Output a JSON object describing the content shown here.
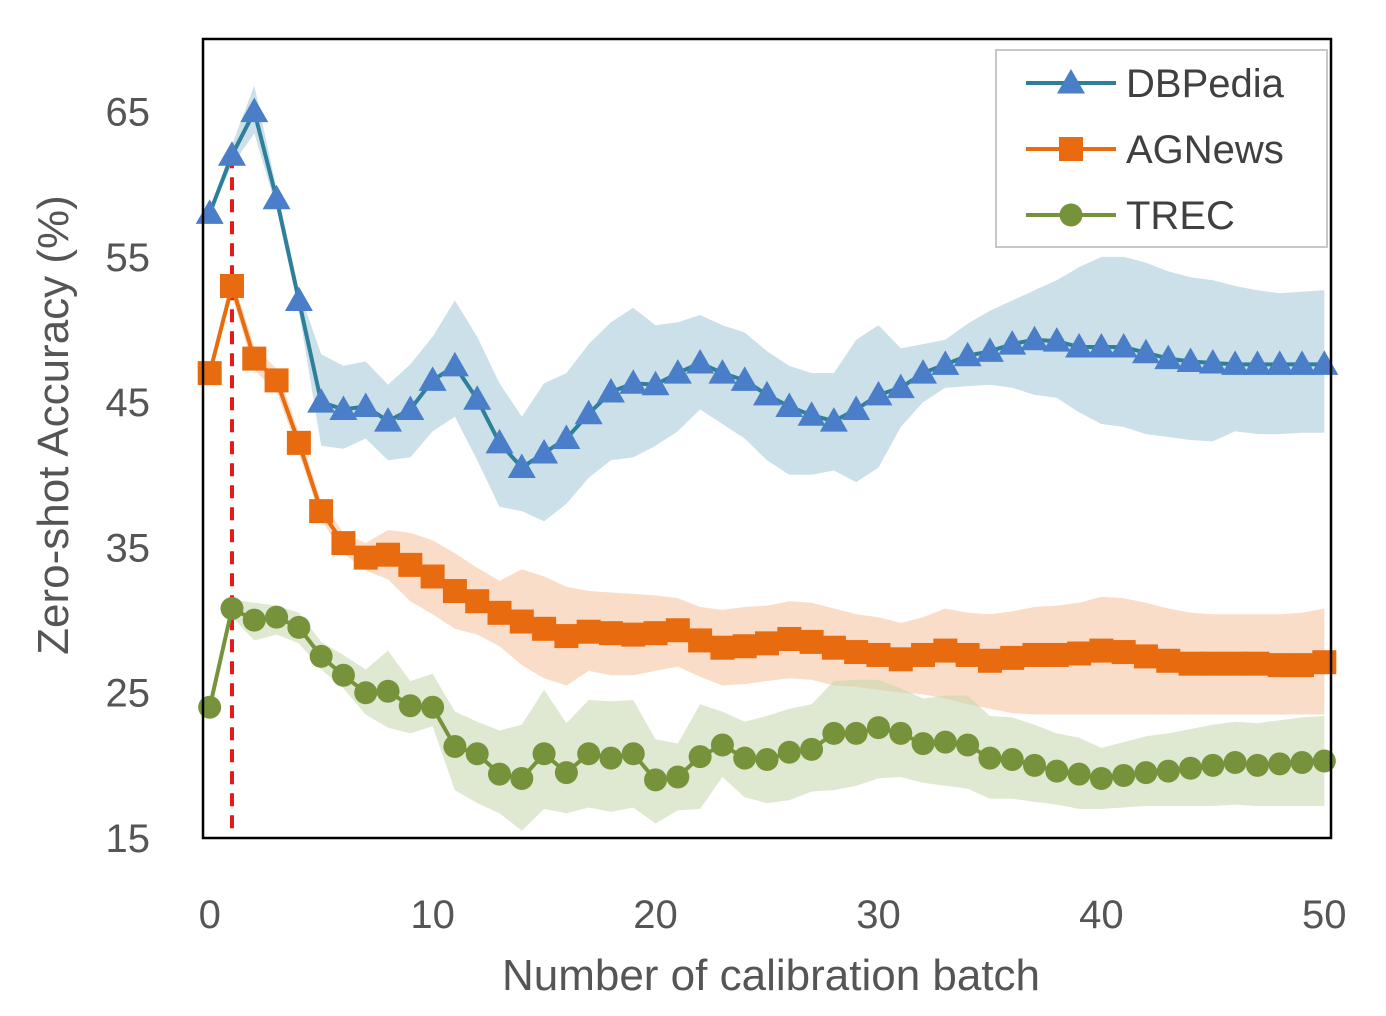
{
  "chart_data": {
    "type": "line",
    "xlabel": "Number of calibration batch",
    "ylabel": "Zero-shot Accuracy (%)",
    "xlim": [
      -0.3,
      50.3
    ],
    "ylim": [
      15,
      70
    ],
    "xticks": [
      0,
      10,
      20,
      30,
      40,
      50
    ],
    "yticks": [
      15,
      25,
      35,
      45,
      55,
      65
    ],
    "grid": false,
    "legend_position": "top-right",
    "reference_line": {
      "x": 1,
      "color": "#e31a1c",
      "style": "dashed"
    },
    "series": [
      {
        "name": "DBPedia",
        "color": "#2e7f9a",
        "marker_color": "#4a7ec8",
        "band_color": "#a9cbd8",
        "marker": "triangle",
        "x": [
          0,
          1,
          2,
          3,
          4,
          5,
          6,
          7,
          8,
          9,
          10,
          11,
          12,
          13,
          14,
          15,
          16,
          17,
          18,
          19,
          20,
          21,
          22,
          23,
          24,
          25,
          26,
          27,
          28,
          29,
          30,
          31,
          32,
          33,
          34,
          35,
          36,
          37,
          38,
          39,
          40,
          41,
          42,
          43,
          44,
          45,
          46,
          47,
          48,
          49,
          50
        ],
        "values": [
          58.0,
          62.0,
          65.0,
          59.0,
          52.0,
          45.0,
          44.5,
          44.7,
          43.7,
          44.5,
          46.5,
          47.5,
          45.2,
          42.2,
          40.5,
          41.5,
          42.5,
          44.2,
          45.7,
          46.3,
          46.2,
          47.0,
          47.7,
          47.0,
          46.5,
          45.5,
          44.7,
          44.1,
          43.7,
          44.5,
          45.5,
          46.0,
          47.0,
          47.6,
          48.2,
          48.5,
          49.0,
          49.3,
          49.2,
          48.8,
          48.8,
          48.8,
          48.4,
          48.0,
          47.8,
          47.7,
          47.6,
          47.6,
          47.6,
          47.6,
          47.6
        ],
        "lower": [
          58.0,
          61.3,
          63.5,
          58.3,
          51.3,
          42.0,
          41.8,
          42.5,
          41.0,
          41.2,
          43.0,
          44.0,
          41.0,
          37.8,
          37.5,
          36.8,
          38.0,
          39.8,
          41.0,
          41.2,
          42.0,
          43.0,
          44.5,
          43.5,
          42.5,
          41.0,
          40.0,
          40.0,
          40.3,
          39.5,
          40.5,
          43.3,
          45.0,
          46.0,
          46.1,
          46.2,
          46.0,
          45.5,
          45.3,
          44.3,
          43.5,
          43.3,
          42.8,
          42.6,
          42.4,
          42.3,
          43.0,
          42.8,
          42.8,
          42.9,
          42.9
        ],
        "upper": [
          58.0,
          62.7,
          66.8,
          59.7,
          52.7,
          48.3,
          47.5,
          47.8,
          46.2,
          47.6,
          49.5,
          52.0,
          49.5,
          46.3,
          44.0,
          46.3,
          47.0,
          49.0,
          50.5,
          51.5,
          50.3,
          50.5,
          51.0,
          50.3,
          49.8,
          48.5,
          47.5,
          47.0,
          47.0,
          49.3,
          50.3,
          48.7,
          49.0,
          49.3,
          50.4,
          51.3,
          52.0,
          52.7,
          53.4,
          54.3,
          55.0,
          55.0,
          54.6,
          54.0,
          53.6,
          53.4,
          53.0,
          52.7,
          52.5,
          52.6,
          52.7
        ]
      },
      {
        "name": "AGNews",
        "color": "#e86c0f",
        "marker_color": "#e86c0f",
        "band_color": "#f5c6a3",
        "marker": "square",
        "x": [
          0,
          1,
          2,
          3,
          4,
          5,
          6,
          7,
          8,
          9,
          10,
          11,
          12,
          13,
          14,
          15,
          16,
          17,
          18,
          19,
          20,
          21,
          22,
          23,
          24,
          25,
          26,
          27,
          28,
          29,
          30,
          31,
          32,
          33,
          34,
          35,
          36,
          37,
          38,
          39,
          40,
          41,
          42,
          43,
          44,
          45,
          46,
          47,
          48,
          49,
          50
        ],
        "values": [
          47.0,
          53.0,
          48.0,
          46.5,
          42.2,
          37.5,
          35.3,
          34.3,
          34.5,
          33.8,
          33.0,
          32.0,
          31.3,
          30.5,
          29.9,
          29.4,
          28.9,
          29.2,
          29.1,
          29.0,
          29.1,
          29.3,
          28.6,
          28.1,
          28.2,
          28.4,
          28.7,
          28.5,
          28.1,
          27.8,
          27.6,
          27.3,
          27.6,
          27.9,
          27.6,
          27.2,
          27.4,
          27.6,
          27.6,
          27.7,
          27.9,
          27.8,
          27.5,
          27.2,
          27.0,
          27.0,
          27.0,
          27.0,
          26.9,
          26.9,
          27.1
        ],
        "lower": [
          47.0,
          52.3,
          47.2,
          45.7,
          41.5,
          36.9,
          34.6,
          33.4,
          32.8,
          31.3,
          30.4,
          29.4,
          29.0,
          28.2,
          26.9,
          26.0,
          25.5,
          26.5,
          26.2,
          26.2,
          26.5,
          26.8,
          26.1,
          25.5,
          25.6,
          25.8,
          26.0,
          25.9,
          25.5,
          25.4,
          25.2,
          25.0,
          24.9,
          24.6,
          24.2,
          23.9,
          23.6,
          23.5,
          23.5,
          23.5,
          23.5,
          23.5,
          23.5,
          23.5,
          23.5,
          23.5,
          23.5,
          23.5,
          23.5,
          23.5,
          23.5
        ],
        "upper": [
          47.0,
          53.7,
          48.8,
          47.3,
          42.9,
          38.2,
          36.0,
          35.3,
          36.2,
          36.0,
          35.5,
          34.6,
          33.6,
          32.7,
          33.5,
          33.0,
          32.3,
          32.0,
          31.9,
          31.8,
          31.7,
          31.5,
          30.9,
          30.7,
          30.9,
          31.0,
          31.3,
          31.2,
          30.8,
          30.4,
          30.2,
          29.8,
          30.2,
          30.8,
          30.5,
          30.4,
          30.6,
          30.9,
          31.0,
          31.2,
          31.6,
          31.5,
          31.2,
          30.8,
          30.5,
          30.4,
          30.4,
          30.4,
          30.4,
          30.5,
          30.8
        ]
      },
      {
        "name": "TREC",
        "color": "#76933c",
        "marker_color": "#76933c",
        "band_color": "#c9d8b0",
        "marker": "circle",
        "x": [
          0,
          1,
          2,
          3,
          4,
          5,
          6,
          7,
          8,
          9,
          10,
          11,
          12,
          13,
          14,
          15,
          16,
          17,
          18,
          19,
          20,
          21,
          22,
          23,
          24,
          25,
          26,
          27,
          28,
          29,
          30,
          31,
          32,
          33,
          34,
          35,
          36,
          37,
          38,
          39,
          40,
          41,
          42,
          43,
          44,
          45,
          46,
          47,
          48,
          49,
          50
        ],
        "values": [
          24.0,
          30.8,
          30.0,
          30.2,
          29.5,
          27.5,
          26.2,
          25.0,
          25.1,
          24.1,
          24.0,
          21.3,
          20.8,
          19.4,
          19.1,
          20.8,
          19.5,
          20.8,
          20.5,
          20.8,
          19.0,
          19.2,
          20.6,
          21.4,
          20.5,
          20.4,
          20.9,
          21.1,
          22.2,
          22.2,
          22.6,
          22.2,
          21.5,
          21.6,
          21.4,
          20.5,
          20.4,
          20.0,
          19.6,
          19.4,
          19.1,
          19.3,
          19.5,
          19.6,
          19.8,
          20.0,
          20.2,
          20.0,
          20.1,
          20.2,
          20.3
        ],
        "lower": [
          24.0,
          30.2,
          28.6,
          29.0,
          28.4,
          26.6,
          25.3,
          23.5,
          22.6,
          22.2,
          22.7,
          18.3,
          17.4,
          16.7,
          15.5,
          17.0,
          16.7,
          17.1,
          16.8,
          17.1,
          16.0,
          16.9,
          17.0,
          19.2,
          17.8,
          17.4,
          17.6,
          18.2,
          18.3,
          18.6,
          19.1,
          19.2,
          18.8,
          18.6,
          18.4,
          17.7,
          17.7,
          17.5,
          17.3,
          17.0,
          17.0,
          17.1,
          17.2,
          17.2,
          17.2,
          17.2,
          17.3,
          17.2,
          17.2,
          17.2,
          17.2
        ],
        "upper": [
          24.0,
          31.4,
          31.2,
          31.0,
          30.5,
          28.5,
          27.6,
          26.6,
          27.9,
          25.8,
          26.3,
          23.7,
          23.0,
          22.4,
          22.8,
          25.2,
          22.9,
          24.5,
          24.4,
          24.5,
          21.8,
          21.5,
          24.2,
          23.7,
          23.0,
          23.4,
          23.9,
          24.2,
          25.8,
          25.9,
          25.9,
          25.3,
          24.6,
          24.8,
          24.8,
          23.4,
          23.3,
          22.8,
          22.2,
          21.9,
          21.2,
          21.6,
          22.0,
          22.2,
          22.5,
          22.8,
          23.0,
          22.9,
          23.1,
          23.3,
          23.4
        ]
      }
    ]
  }
}
